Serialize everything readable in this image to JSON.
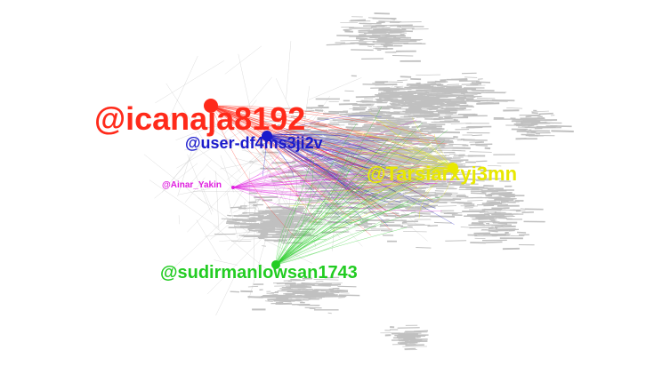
{
  "graph": {
    "background": "#ffffff",
    "edge_color": "#c0c0c0",
    "clusters": [
      {
        "id": "icanaja8192",
        "label": "@icanaja8192",
        "color": "#ff2a1a",
        "size": "largest"
      },
      {
        "id": "user-df4ms3ji2v",
        "label": "@user-df4ms3ji2v",
        "color": "#1a1acc",
        "size": "large"
      },
      {
        "id": "Tarsiarxyj3mn",
        "label": "@Tarsiarxyj3mn",
        "color": "#e8e800",
        "size": "large"
      },
      {
        "id": "Ainar_Yakin",
        "label": "@Ainar_Yakin",
        "color": "#e020e0",
        "size": "small"
      },
      {
        "id": "sudirmanlowsan1743",
        "label": "@sudirmanlowsan1743",
        "color": "#22cc22",
        "size": "large"
      }
    ]
  }
}
